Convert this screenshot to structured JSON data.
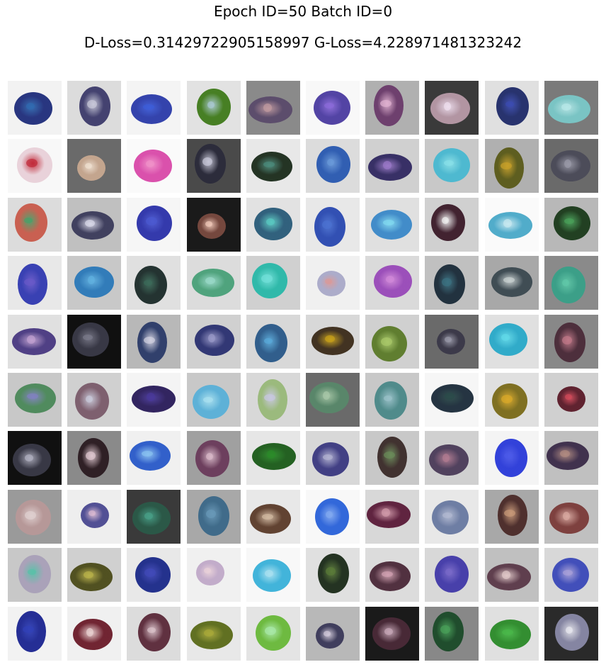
{
  "header": {
    "title_line1": "Epoch ID=50 Batch ID=0",
    "title_line2": "D-Loss=0.31429722905158997 G-Loss=4.228971481323242"
  },
  "grid": {
    "rows": 10,
    "cols": 10,
    "tiles": [
      [
        {
          "bg": "#f2f2f2",
          "fg": "#1e2c7a",
          "accent": "#2f6ab0"
        },
        {
          "bg": "#dcdcdc",
          "fg": "#3c3a6a",
          "accent": "#c8c8d8"
        },
        {
          "bg": "#f4f4f4",
          "fg": "#2a3aa8",
          "accent": "#3c5cd8"
        },
        {
          "bg": "#e2e2e2",
          "fg": "#3f7a1a",
          "accent": "#a8c8d0"
        },
        {
          "bg": "#8a8a8a",
          "fg": "#5a4a6a",
          "accent": "#c09aa0"
        },
        {
          "bg": "#f8f8f8",
          "fg": "#4a3aa0",
          "accent": "#8a6ad8"
        },
        {
          "bg": "#b0b0b0",
          "fg": "#6a3a6a",
          "accent": "#e0b0d0"
        },
        {
          "bg": "#3a3a3a",
          "fg": "#b89aa8",
          "accent": "#f0e0f0"
        },
        {
          "bg": "#e0e0e0",
          "fg": "#1e2a68",
          "accent": "#3a4ab0"
        },
        {
          "bg": "#7a7a7a",
          "fg": "#7ac8c8",
          "accent": "#b8e8e8"
        }
      ],
      [
        {
          "bg": "#f8f8f8",
          "fg": "#e8d0d8",
          "accent": "#c02838"
        },
        {
          "bg": "#6a6a6a",
          "fg": "#c8a890",
          "accent": "#f0e0d0"
        },
        {
          "bg": "#fafafa",
          "fg": "#d848a8",
          "accent": "#f090c8"
        },
        {
          "bg": "#4a4a4a",
          "fg": "#2a2a3a",
          "accent": "#c8c8d8"
        },
        {
          "bg": "#e8e8e8",
          "fg": "#1a2a1a",
          "accent": "#4a8a7a"
        },
        {
          "bg": "#dcdcdc",
          "fg": "#2858b0",
          "accent": "#6898d8"
        },
        {
          "bg": "#d0d0d0",
          "fg": "#302860",
          "accent": "#9a78c8"
        },
        {
          "bg": "#c8c8c8",
          "fg": "#48b8d0",
          "accent": "#88e0e8"
        },
        {
          "bg": "#b0b0b0",
          "fg": "#5a5a18",
          "accent": "#c8a028"
        },
        {
          "bg": "#6a6a6a",
          "fg": "#4a4a58",
          "accent": "#9a9aa8"
        }
      ],
      [
        {
          "bg": "#dcdcdc",
          "fg": "#c85a4a",
          "accent": "#48a068"
        },
        {
          "bg": "#c0c0c0",
          "fg": "#3a3a5a",
          "accent": "#d8d8e8"
        },
        {
          "bg": "#f6f6f6",
          "fg": "#2a30a8",
          "accent": "#4a58d0"
        },
        {
          "bg": "#1a1a1a",
          "fg": "#7a4a40",
          "accent": "#f0c8b8"
        },
        {
          "bg": "#e2e2e2",
          "fg": "#285a78",
          "accent": "#58c8c0"
        },
        {
          "bg": "#e8e8e8",
          "fg": "#2848b0",
          "accent": "#4a70d0"
        },
        {
          "bg": "#e0e0e0",
          "fg": "#3a88c8",
          "accent": "#80d8f0"
        },
        {
          "bg": "#d0d0d0",
          "fg": "#3a1a28",
          "accent": "#f0f0f0"
        },
        {
          "bg": "#fafafa",
          "fg": "#48a8c8",
          "accent": "#c8e8f0"
        },
        {
          "bg": "#b8b8b8",
          "fg": "#1a3a1a",
          "accent": "#48a058"
        }
      ],
      [
        {
          "bg": "#e8e8e8",
          "fg": "#3038b0",
          "accent": "#6858c8"
        },
        {
          "bg": "#c8c8c8",
          "fg": "#2a78b8",
          "accent": "#60b0e0"
        },
        {
          "bg": "#e0e0e0",
          "fg": "#1a2a28",
          "accent": "#3a6a58"
        },
        {
          "bg": "#dcdcdc",
          "fg": "#48a078",
          "accent": "#98d8c8"
        },
        {
          "bg": "#d0d0d0",
          "fg": "#28b8a8",
          "accent": "#70e0d8"
        },
        {
          "bg": "#f0f0f0",
          "fg": "#a8a8c8",
          "accent": "#d89898"
        },
        {
          "bg": "#dadada",
          "fg": "#9848b8",
          "accent": "#d088d8"
        },
        {
          "bg": "#c0c0c0",
          "fg": "#1a2a38",
          "accent": "#3a7080"
        },
        {
          "bg": "#a8a8a8",
          "fg": "#3a4850",
          "accent": "#c8d0d0"
        },
        {
          "bg": "#8a8a8a",
          "fg": "#38a088",
          "accent": "#60c8a8"
        }
      ],
      [
        {
          "bg": "#e0e0e0",
          "fg": "#483880",
          "accent": "#c0a0d0"
        },
        {
          "bg": "#101010",
          "fg": "#3a3a48",
          "accent": "#7a7a8a"
        },
        {
          "bg": "#b8b8b8",
          "fg": "#2a3a68",
          "accent": "#d0d0e0"
        },
        {
          "bg": "#d0d0d0",
          "fg": "#2a3070",
          "accent": "#9898c8"
        },
        {
          "bg": "#d8d8d8",
          "fg": "#285888",
          "accent": "#58a8d8"
        },
        {
          "bg": "#d8d8d8",
          "fg": "#3a2a18",
          "accent": "#c8a018"
        },
        {
          "bg": "#d0d0d0",
          "fg": "#5a7a28",
          "accent": "#a8c868"
        },
        {
          "bg": "#6a6a6a",
          "fg": "#3a3848",
          "accent": "#9898a8"
        },
        {
          "bg": "#e0e0e0",
          "fg": "#28a8c8",
          "accent": "#60d8e8"
        },
        {
          "bg": "#888888",
          "fg": "#4a2a38",
          "accent": "#c07888"
        }
      ],
      [
        {
          "bg": "#c8c8c8",
          "fg": "#4a8858",
          "accent": "#8080c0"
        },
        {
          "bg": "#d0d0d0",
          "fg": "#7a5a6a",
          "accent": "#c8c8d8"
        },
        {
          "bg": "#f4f4f4",
          "fg": "#281a58",
          "accent": "#48389a"
        },
        {
          "bg": "#c8c8c8",
          "fg": "#58b0d8",
          "accent": "#a8e0f0"
        },
        {
          "bg": "#d8d8d8",
          "fg": "#98b878",
          "accent": "#c8c8e0"
        },
        {
          "bg": "#6a6a6a",
          "fg": "#58886a",
          "accent": "#a8c8a8"
        },
        {
          "bg": "#c8c8c8",
          "fg": "#4a8888",
          "accent": "#98c0c8"
        },
        {
          "bg": "#f6f6f6",
          "fg": "#1a2a38",
          "accent": "#2a4a48"
        },
        {
          "bg": "#e0e0e0",
          "fg": "#7a6a18",
          "accent": "#d8a828"
        },
        {
          "bg": "#d0d0d0",
          "fg": "#5a1a28",
          "accent": "#d04858"
        }
      ],
      [
        {
          "bg": "#101010",
          "fg": "#3a3a48",
          "accent": "#b0b0c0"
        },
        {
          "bg": "#8a8a8a",
          "fg": "#2a1a20",
          "accent": "#e0c8d0"
        },
        {
          "bg": "#f0f0f0",
          "fg": "#2858c8",
          "accent": "#88c0f0"
        },
        {
          "bg": "#a0a0a0",
          "fg": "#6a3a5a",
          "accent": "#d8b8c8"
        },
        {
          "bg": "#e6e6e6",
          "fg": "#1a5a18",
          "accent": "#2a8a28"
        },
        {
          "bg": "#d8d8d8",
          "fg": "#3a3880",
          "accent": "#b0b0d0"
        },
        {
          "bg": "#c8c8c8",
          "fg": "#3a2a28",
          "accent": "#6a8a58"
        },
        {
          "bg": "#d0d0d0",
          "fg": "#4a3a58",
          "accent": "#b07a90"
        },
        {
          "bg": "#f4f4f4",
          "fg": "#2838d8",
          "accent": "#4a58e8"
        },
        {
          "bg": "#c0c0c0",
          "fg": "#3a2a48",
          "accent": "#b08a80"
        }
      ],
      [
        {
          "bg": "#9a9a9a",
          "fg": "#b89898",
          "accent": "#e0d0d0"
        },
        {
          "bg": "#eeeeee",
          "fg": "#4a4890",
          "accent": "#d8b8d0"
        },
        {
          "bg": "#3a3a3a",
          "fg": "#2a5a48",
          "accent": "#48a088"
        },
        {
          "bg": "#a8a8a8",
          "fg": "#3a6888",
          "accent": "#6898b8"
        },
        {
          "bg": "#e8e8e8",
          "fg": "#5a3a28",
          "accent": "#d0b8a0"
        },
        {
          "bg": "#f8f8f8",
          "fg": "#2860d8",
          "accent": "#80a8f0"
        },
        {
          "bg": "#d8d8d8",
          "fg": "#5a1a38",
          "accent": "#d098a8"
        },
        {
          "bg": "#e8e8e8",
          "fg": "#6878a0",
          "accent": "#b0b8d0"
        },
        {
          "bg": "#a8a8a8",
          "fg": "#4a2a28",
          "accent": "#c89878"
        },
        {
          "bg": "#c0c0c0",
          "fg": "#7a3a38",
          "accent": "#d8a8a0"
        }
      ],
      [
        {
          "bg": "#c8c8c8",
          "fg": "#a8a0b8",
          "accent": "#58c0a8"
        },
        {
          "bg": "#d0d0d0",
          "fg": "#4a4a18",
          "accent": "#b8b048"
        },
        {
          "bg": "#e8e8e8",
          "fg": "#1a2888",
          "accent": "#4048b8"
        },
        {
          "bg": "#f0f0f0",
          "fg": "#c0a8c8",
          "accent": "#e8d0d8"
        },
        {
          "bg": "#f8f8f8",
          "fg": "#38b0d8",
          "accent": "#a8e0f0"
        },
        {
          "bg": "#e0e0e0",
          "fg": "#1a2a18",
          "accent": "#5a7a38"
        },
        {
          "bg": "#dcdcdc",
          "fg": "#4a2838",
          "accent": "#d0a0b0"
        },
        {
          "bg": "#d8d8d8",
          "fg": "#4038a8",
          "accent": "#7868c8"
        },
        {
          "bg": "#c0c0c0",
          "fg": "#5a3848",
          "accent": "#e0c8c8"
        },
        {
          "bg": "#d8d8d8",
          "fg": "#3a48b8",
          "accent": "#a8a0d8"
        }
      ],
      [
        {
          "bg": "#f2f2f2",
          "fg": "#1a2490",
          "accent": "#3040b8"
        },
        {
          "bg": "#f0f0f0",
          "fg": "#6a1a28",
          "accent": "#e8d0d0"
        },
        {
          "bg": "#dcdcdc",
          "fg": "#5a2838",
          "accent": "#d8c0c8"
        },
        {
          "bg": "#e8e8e8",
          "fg": "#5a6a18",
          "accent": "#a8a838"
        },
        {
          "bg": "#e4e4e4",
          "fg": "#68b838",
          "accent": "#a8e8a8"
        },
        {
          "bg": "#b8b8b8",
          "fg": "#3a3858",
          "accent": "#d0c8d8"
        },
        {
          "bg": "#1a1a1a",
          "fg": "#4a2a38",
          "accent": "#c8a8b8"
        },
        {
          "bg": "#888888",
          "fg": "#1a4a28",
          "accent": "#48a058"
        },
        {
          "bg": "#e0e0e0",
          "fg": "#2a8a28",
          "accent": "#48b848"
        },
        {
          "bg": "#2a2a2a",
          "fg": "#8a8aa8",
          "accent": "#e8e8f0"
        }
      ]
    ]
  }
}
